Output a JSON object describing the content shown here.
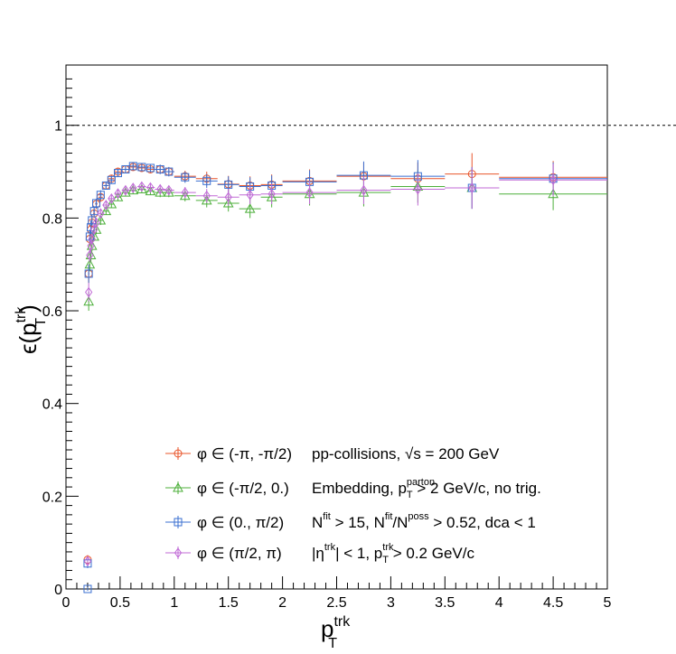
{
  "chart_data": {
    "type": "scatter",
    "xlabel_main": "p",
    "xlabel_sup": "trk",
    "xlabel_sub": "T",
    "ylabel_main": "ϵ(p",
    "ylabel_sup": "trk",
    "ylabel_sub": "T",
    "ylabel_close": ")",
    "xlim": [
      0,
      5
    ],
    "ylim": [
      0,
      1.13
    ],
    "x_ticks": [
      {
        "v": 0,
        "label": "0"
      },
      {
        "v": 0.5,
        "label": "0.5"
      },
      {
        "v": 1,
        "label": "1"
      },
      {
        "v": 1.5,
        "label": "1.5"
      },
      {
        "v": 2,
        "label": "2"
      },
      {
        "v": 2.5,
        "label": "2.5"
      },
      {
        "v": 3,
        "label": "3"
      },
      {
        "v": 3.5,
        "label": "3.5"
      },
      {
        "v": 4,
        "label": "4"
      },
      {
        "v": 4.5,
        "label": "4.5"
      },
      {
        "v": 5,
        "label": "5"
      }
    ],
    "y_ticks": [
      {
        "v": 0,
        "label": "0"
      },
      {
        "v": 0.2,
        "label": "0.2"
      },
      {
        "v": 0.4,
        "label": "0.4"
      },
      {
        "v": 0.6,
        "label": "0.6"
      },
      {
        "v": 0.8,
        "label": "0.8"
      },
      {
        "v": 1,
        "label": "1"
      }
    ],
    "reference_line_y": 1,
    "grid": false,
    "legend_position": "bottom-center",
    "series": [
      {
        "name": "φ ∈ (-π, -π/2)",
        "marker": "circle",
        "color": "#e8542a",
        "points": [
          [
            0.2,
            0.063,
            0.002,
            0.01
          ],
          [
            0.21,
            0.68,
            0.005,
            0.02
          ],
          [
            0.22,
            0.755,
            0.005,
            0.015
          ],
          [
            0.23,
            0.775,
            0.005,
            0.015
          ],
          [
            0.24,
            0.79,
            0.005,
            0.012
          ],
          [
            0.26,
            0.81,
            0.01,
            0.01
          ],
          [
            0.28,
            0.83,
            0.01,
            0.01
          ],
          [
            0.32,
            0.845,
            0.02,
            0.01
          ],
          [
            0.37,
            0.87,
            0.025,
            0.008
          ],
          [
            0.42,
            0.885,
            0.025,
            0.008
          ],
          [
            0.48,
            0.9,
            0.03,
            0.008
          ],
          [
            0.55,
            0.905,
            0.035,
            0.008
          ],
          [
            0.62,
            0.91,
            0.035,
            0.008
          ],
          [
            0.7,
            0.908,
            0.04,
            0.008
          ],
          [
            0.78,
            0.905,
            0.04,
            0.008
          ],
          [
            0.87,
            0.905,
            0.05,
            0.01
          ],
          [
            0.95,
            0.9,
            0.05,
            0.01
          ],
          [
            1.1,
            0.89,
            0.1,
            0.012
          ],
          [
            1.3,
            0.885,
            0.1,
            0.015
          ],
          [
            1.5,
            0.873,
            0.1,
            0.018
          ],
          [
            1.7,
            0.87,
            0.1,
            0.02
          ],
          [
            1.9,
            0.872,
            0.1,
            0.022
          ],
          [
            2.25,
            0.88,
            0.25,
            0.025
          ],
          [
            2.75,
            0.89,
            0.25,
            0.03
          ],
          [
            3.25,
            0.885,
            0.25,
            0.035
          ],
          [
            3.75,
            0.895,
            0.25,
            0.045
          ],
          [
            4.5,
            0.888,
            0.5,
            0.035
          ]
        ]
      },
      {
        "name": "φ ∈ (-π/2, 0.)",
        "marker": "triangle",
        "color": "#4caf3a",
        "points": [
          [
            0.21,
            0.62,
            0.005,
            0.02
          ],
          [
            0.22,
            0.7,
            0.005,
            0.015
          ],
          [
            0.23,
            0.72,
            0.005,
            0.015
          ],
          [
            0.24,
            0.74,
            0.005,
            0.012
          ],
          [
            0.26,
            0.76,
            0.01,
            0.01
          ],
          [
            0.28,
            0.775,
            0.01,
            0.01
          ],
          [
            0.32,
            0.795,
            0.02,
            0.01
          ],
          [
            0.37,
            0.815,
            0.025,
            0.008
          ],
          [
            0.42,
            0.83,
            0.025,
            0.008
          ],
          [
            0.48,
            0.845,
            0.03,
            0.008
          ],
          [
            0.55,
            0.855,
            0.035,
            0.008
          ],
          [
            0.62,
            0.86,
            0.035,
            0.008
          ],
          [
            0.7,
            0.862,
            0.04,
            0.008
          ],
          [
            0.78,
            0.858,
            0.04,
            0.008
          ],
          [
            0.87,
            0.855,
            0.05,
            0.01
          ],
          [
            0.95,
            0.855,
            0.05,
            0.01
          ],
          [
            1.1,
            0.848,
            0.1,
            0.012
          ],
          [
            1.3,
            0.838,
            0.1,
            0.015
          ],
          [
            1.5,
            0.832,
            0.1,
            0.018
          ],
          [
            1.7,
            0.82,
            0.1,
            0.02
          ],
          [
            1.9,
            0.845,
            0.1,
            0.022
          ],
          [
            2.25,
            0.852,
            0.25,
            0.025
          ],
          [
            2.75,
            0.855,
            0.25,
            0.03
          ],
          [
            3.25,
            0.868,
            0.25,
            0.035
          ],
          [
            3.75,
            0.865,
            0.25,
            0.045
          ],
          [
            4.5,
            0.852,
            0.5,
            0.035
          ]
        ]
      },
      {
        "name": "φ ∈ (0., π/2)",
        "marker": "square",
        "color": "#3a6fd1",
        "points": [
          [
            0.2,
            0.0,
            0.002,
            0.004
          ],
          [
            0.2,
            0.055,
            0.002,
            0.01
          ],
          [
            0.21,
            0.68,
            0.005,
            0.02
          ],
          [
            0.22,
            0.76,
            0.005,
            0.015
          ],
          [
            0.23,
            0.78,
            0.005,
            0.015
          ],
          [
            0.24,
            0.795,
            0.005,
            0.012
          ],
          [
            0.26,
            0.815,
            0.01,
            0.01
          ],
          [
            0.28,
            0.832,
            0.01,
            0.01
          ],
          [
            0.32,
            0.85,
            0.02,
            0.01
          ],
          [
            0.37,
            0.87,
            0.025,
            0.008
          ],
          [
            0.42,
            0.882,
            0.025,
            0.008
          ],
          [
            0.48,
            0.897,
            0.03,
            0.008
          ],
          [
            0.55,
            0.905,
            0.035,
            0.008
          ],
          [
            0.62,
            0.912,
            0.035,
            0.008
          ],
          [
            0.7,
            0.91,
            0.04,
            0.008
          ],
          [
            0.78,
            0.908,
            0.04,
            0.008
          ],
          [
            0.87,
            0.905,
            0.05,
            0.01
          ],
          [
            0.95,
            0.9,
            0.05,
            0.01
          ],
          [
            1.1,
            0.888,
            0.1,
            0.012
          ],
          [
            1.3,
            0.88,
            0.1,
            0.015
          ],
          [
            1.5,
            0.872,
            0.1,
            0.018
          ],
          [
            1.7,
            0.868,
            0.1,
            0.02
          ],
          [
            1.9,
            0.87,
            0.1,
            0.022
          ],
          [
            2.25,
            0.878,
            0.25,
            0.025
          ],
          [
            2.75,
            0.892,
            0.25,
            0.03
          ],
          [
            3.25,
            0.89,
            0.25,
            0.035
          ],
          [
            3.75,
            0.865,
            0.25,
            0.045
          ],
          [
            4.5,
            0.885,
            0.5,
            0.035
          ]
        ]
      },
      {
        "name": "φ ∈ (π/2, π)",
        "marker": "diamond",
        "color": "#c06ad6",
        "points": [
          [
            0.2,
            0.06,
            0.002,
            0.01
          ],
          [
            0.21,
            0.64,
            0.005,
            0.02
          ],
          [
            0.22,
            0.72,
            0.005,
            0.015
          ],
          [
            0.23,
            0.74,
            0.005,
            0.015
          ],
          [
            0.24,
            0.755,
            0.005,
            0.012
          ],
          [
            0.26,
            0.775,
            0.01,
            0.01
          ],
          [
            0.28,
            0.79,
            0.01,
            0.01
          ],
          [
            0.32,
            0.81,
            0.02,
            0.01
          ],
          [
            0.37,
            0.828,
            0.025,
            0.008
          ],
          [
            0.42,
            0.842,
            0.025,
            0.008
          ],
          [
            0.48,
            0.853,
            0.03,
            0.008
          ],
          [
            0.55,
            0.86,
            0.035,
            0.008
          ],
          [
            0.62,
            0.865,
            0.035,
            0.008
          ],
          [
            0.7,
            0.868,
            0.04,
            0.008
          ],
          [
            0.78,
            0.866,
            0.04,
            0.008
          ],
          [
            0.87,
            0.862,
            0.05,
            0.01
          ],
          [
            0.95,
            0.86,
            0.05,
            0.01
          ],
          [
            1.1,
            0.855,
            0.1,
            0.012
          ],
          [
            1.3,
            0.848,
            0.1,
            0.015
          ],
          [
            1.5,
            0.845,
            0.1,
            0.018
          ],
          [
            1.7,
            0.85,
            0.1,
            0.02
          ],
          [
            1.9,
            0.852,
            0.1,
            0.022
          ],
          [
            2.25,
            0.855,
            0.25,
            0.025
          ],
          [
            2.75,
            0.86,
            0.25,
            0.03
          ],
          [
            3.25,
            0.862,
            0.25,
            0.035
          ],
          [
            3.75,
            0.865,
            0.25,
            0.045
          ],
          [
            4.5,
            0.882,
            0.5,
            0.035
          ]
        ]
      }
    ],
    "annotations": [
      {
        "parts": [
          {
            "t": "pp-collisions, √s = 200 GeV"
          }
        ]
      },
      {
        "parts": [
          {
            "t": "Embedding, p"
          },
          {
            "t": "parton",
            "sup": true
          },
          {
            "t": "T",
            "sub": true
          },
          {
            "t": " > 2 GeV/c, no trig."
          }
        ]
      },
      {
        "parts": [
          {
            "t": "N"
          },
          {
            "t": "fit",
            "sup": true
          },
          {
            "t": " > 15, N"
          },
          {
            "t": "fit",
            "sup": true
          },
          {
            "t": "/N"
          },
          {
            "t": "poss",
            "sup": true
          },
          {
            "t": " > 0.52, dca < 1"
          }
        ]
      },
      {
        "parts": [
          {
            "t": "|η"
          },
          {
            "t": "trk",
            "sup": true
          },
          {
            "t": "| < 1, p"
          },
          {
            "t": "trk",
            "sup": true
          },
          {
            "t": "T",
            "sub": true
          },
          {
            "t": " > 0.2 GeV/c"
          }
        ]
      }
    ]
  }
}
